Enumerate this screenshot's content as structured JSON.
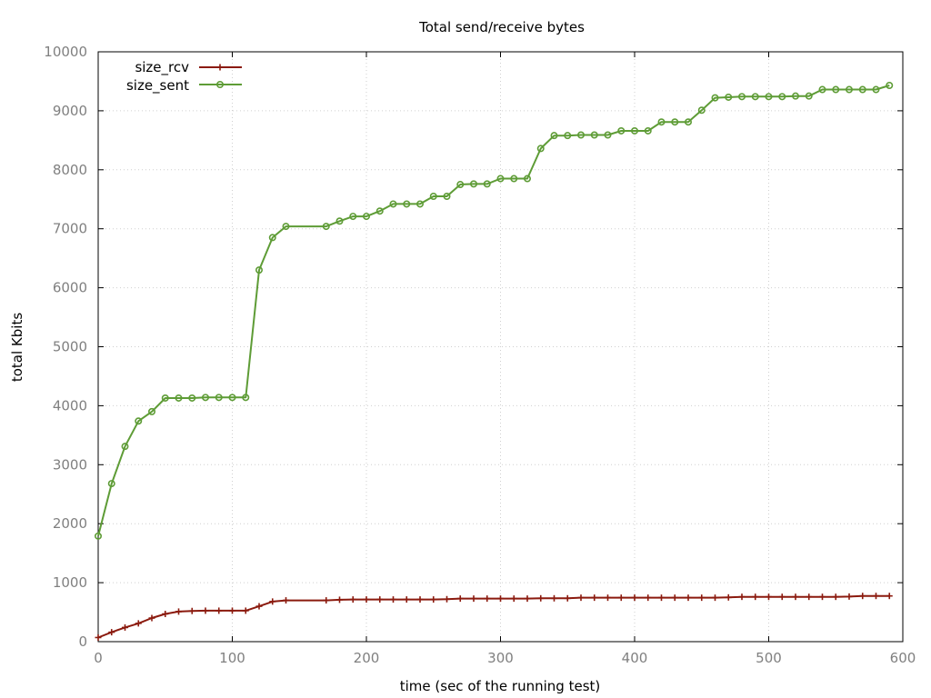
{
  "chart_data": {
    "type": "line",
    "title": "Total send/receive bytes",
    "xlabel": "time (sec of the running test)",
    "ylabel": "total Kbits",
    "xlim": [
      0,
      600
    ],
    "ylim": [
      0,
      10000
    ],
    "xticks": [
      0,
      100,
      200,
      300,
      400,
      500,
      600
    ],
    "yticks": [
      0,
      1000,
      2000,
      3000,
      4000,
      5000,
      6000,
      7000,
      8000,
      9000,
      10000
    ],
    "grid": true,
    "legend_position": "top-left",
    "series": [
      {
        "name": "size_rcv",
        "color": "#8b1a0e",
        "marker": "plus",
        "points": [
          [
            0,
            70
          ],
          [
            10,
            160
          ],
          [
            20,
            240
          ],
          [
            30,
            310
          ],
          [
            40,
            400
          ],
          [
            50,
            470
          ],
          [
            60,
            510
          ],
          [
            70,
            520
          ],
          [
            80,
            525
          ],
          [
            90,
            525
          ],
          [
            100,
            525
          ],
          [
            110,
            525
          ],
          [
            120,
            600
          ],
          [
            130,
            680
          ],
          [
            140,
            700
          ],
          [
            170,
            700
          ],
          [
            180,
            710
          ],
          [
            190,
            715
          ],
          [
            200,
            715
          ],
          [
            210,
            715
          ],
          [
            220,
            715
          ],
          [
            230,
            715
          ],
          [
            240,
            715
          ],
          [
            250,
            715
          ],
          [
            260,
            720
          ],
          [
            270,
            730
          ],
          [
            280,
            730
          ],
          [
            290,
            730
          ],
          [
            300,
            730
          ],
          [
            310,
            730
          ],
          [
            320,
            730
          ],
          [
            330,
            735
          ],
          [
            340,
            735
          ],
          [
            350,
            735
          ],
          [
            360,
            745
          ],
          [
            370,
            745
          ],
          [
            380,
            745
          ],
          [
            390,
            745
          ],
          [
            400,
            745
          ],
          [
            410,
            745
          ],
          [
            420,
            745
          ],
          [
            430,
            745
          ],
          [
            440,
            745
          ],
          [
            450,
            745
          ],
          [
            460,
            745
          ],
          [
            470,
            750
          ],
          [
            480,
            760
          ],
          [
            490,
            760
          ],
          [
            500,
            760
          ],
          [
            510,
            760
          ],
          [
            520,
            760
          ],
          [
            530,
            760
          ],
          [
            540,
            760
          ],
          [
            550,
            760
          ],
          [
            560,
            765
          ],
          [
            570,
            775
          ],
          [
            580,
            775
          ],
          [
            590,
            775
          ]
        ]
      },
      {
        "name": "size_sent",
        "color": "#5e9c36",
        "marker": "circle",
        "points": [
          [
            0,
            1790
          ],
          [
            10,
            2680
          ],
          [
            20,
            3310
          ],
          [
            30,
            3740
          ],
          [
            40,
            3900
          ],
          [
            50,
            4130
          ],
          [
            60,
            4130
          ],
          [
            70,
            4130
          ],
          [
            80,
            4140
          ],
          [
            90,
            4140
          ],
          [
            100,
            4140
          ],
          [
            110,
            4140
          ],
          [
            120,
            6300
          ],
          [
            130,
            6850
          ],
          [
            140,
            7040
          ],
          [
            170,
            7040
          ],
          [
            180,
            7130
          ],
          [
            190,
            7210
          ],
          [
            200,
            7210
          ],
          [
            210,
            7300
          ],
          [
            220,
            7420
          ],
          [
            230,
            7420
          ],
          [
            240,
            7420
          ],
          [
            250,
            7550
          ],
          [
            260,
            7550
          ],
          [
            270,
            7750
          ],
          [
            280,
            7760
          ],
          [
            290,
            7760
          ],
          [
            300,
            7850
          ],
          [
            310,
            7850
          ],
          [
            320,
            7850
          ],
          [
            330,
            8360
          ],
          [
            340,
            8580
          ],
          [
            350,
            8580
          ],
          [
            360,
            8590
          ],
          [
            370,
            8590
          ],
          [
            380,
            8590
          ],
          [
            390,
            8660
          ],
          [
            400,
            8660
          ],
          [
            410,
            8660
          ],
          [
            420,
            8810
          ],
          [
            430,
            8810
          ],
          [
            440,
            8810
          ],
          [
            450,
            9010
          ],
          [
            460,
            9220
          ],
          [
            470,
            9230
          ],
          [
            480,
            9240
          ],
          [
            490,
            9240
          ],
          [
            500,
            9240
          ],
          [
            510,
            9240
          ],
          [
            520,
            9250
          ],
          [
            530,
            9250
          ],
          [
            540,
            9360
          ],
          [
            550,
            9360
          ],
          [
            560,
            9360
          ],
          [
            570,
            9360
          ],
          [
            580,
            9360
          ],
          [
            590,
            9430
          ]
        ]
      }
    ]
  }
}
